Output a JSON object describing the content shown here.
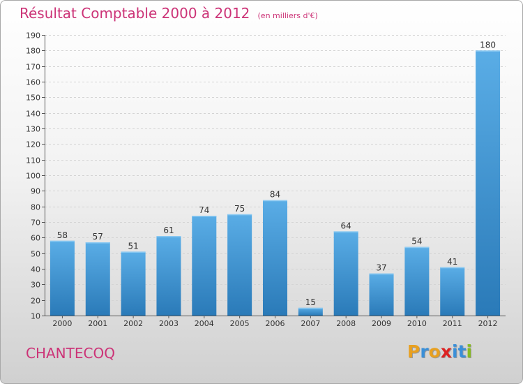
{
  "title": "Résultat Comptable 2000 à 2012",
  "subtitle": "(en milliers d'€)",
  "commune": "CHANTECOQ",
  "logo": {
    "text": "Proxiti",
    "letters": [
      {
        "c": "P",
        "color": "#e8a020"
      },
      {
        "c": "r",
        "color": "#3a8fd8"
      },
      {
        "c": "o",
        "color": "#e8a020"
      },
      {
        "c": "x",
        "color": "#dd2222"
      },
      {
        "c": "i",
        "color": "#3a8fd8"
      },
      {
        "c": "t",
        "color": "#3a8fd8"
      },
      {
        "c": "i",
        "color": "#88bb22"
      }
    ]
  },
  "colors": {
    "title": "#cc3377",
    "bar_light": "#5aade6",
    "bar_dark": "#2a7ab8"
  },
  "chart_data": {
    "type": "bar",
    "title": "Résultat Comptable 2000 à 2012",
    "xlabel": "",
    "ylabel": "",
    "categories": [
      "2000",
      "2001",
      "2002",
      "2003",
      "2004",
      "2005",
      "2006",
      "2007",
      "2008",
      "2009",
      "2010",
      "2011",
      "2012"
    ],
    "values": [
      58,
      57,
      51,
      61,
      74,
      75,
      84,
      15,
      64,
      37,
      54,
      41,
      180
    ],
    "ylim": [
      10,
      190
    ],
    "yticks": [
      10,
      20,
      30,
      40,
      50,
      60,
      70,
      80,
      90,
      100,
      110,
      120,
      130,
      140,
      150,
      160,
      170,
      180,
      190
    ],
    "grid": true
  }
}
